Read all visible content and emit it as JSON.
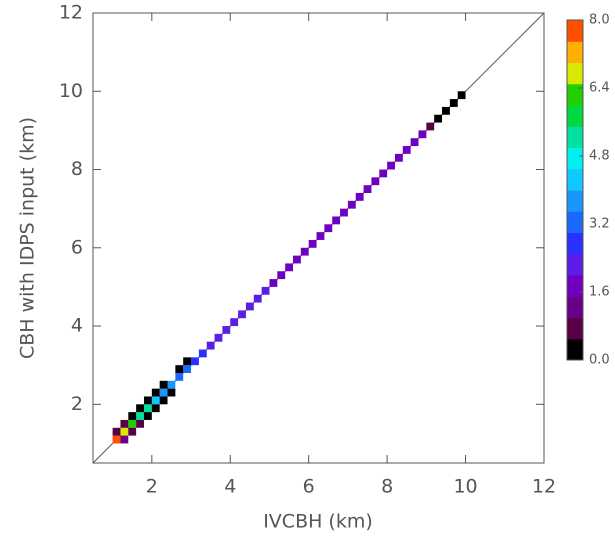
{
  "chart_data": {
    "type": "heatmap",
    "xlabel": "IVCBH (km)",
    "ylabel": "CBH with IDPS input (km)",
    "xlim": [
      0.5,
      12
    ],
    "ylim": [
      0.5,
      12
    ],
    "xticks": [
      2,
      4,
      6,
      8,
      10,
      12
    ],
    "yticks": [
      2,
      4,
      6,
      8,
      10,
      12
    ],
    "cell_size": 0.2,
    "x": [
      1.1,
      1.3,
      1.5,
      1.7,
      1.9,
      2.1,
      2.3,
      2.5,
      2.7,
      2.9,
      3.1,
      3.3,
      3.5,
      3.7,
      3.9,
      4.1,
      4.3,
      4.5,
      4.7,
      4.9,
      5.1,
      5.3,
      5.5,
      5.7,
      5.9,
      6.1,
      6.3,
      6.5,
      6.7,
      6.9,
      7.1,
      7.3,
      7.5,
      7.7,
      7.9,
      8.1,
      8.3,
      8.5,
      8.7,
      8.9,
      9.1,
      9.3,
      9.5,
      9.7,
      9.9,
      1.1,
      1.3,
      1.3,
      1.5,
      1.5,
      1.7,
      1.7,
      1.9,
      1.9,
      2.1,
      2.1,
      2.3,
      2.3,
      2.5,
      2.7,
      2.9
    ],
    "y": [
      1.1,
      1.3,
      1.5,
      1.7,
      1.9,
      2.1,
      2.3,
      2.5,
      2.7,
      2.9,
      3.1,
      3.3,
      3.5,
      3.7,
      3.9,
      4.1,
      4.3,
      4.5,
      4.7,
      4.9,
      5.1,
      5.3,
      5.5,
      5.7,
      5.9,
      6.1,
      6.3,
      6.5,
      6.7,
      6.9,
      7.1,
      7.3,
      7.5,
      7.7,
      7.9,
      8.1,
      8.3,
      8.5,
      8.7,
      8.9,
      9.1,
      9.3,
      9.5,
      9.7,
      9.9,
      1.3,
      1.1,
      1.5,
      1.3,
      1.7,
      1.5,
      1.9,
      1.7,
      2.1,
      1.9,
      2.3,
      2.1,
      2.5,
      2.3,
      2.9,
      3.1
    ],
    "values": [
      7.6,
      6.8,
      6.4,
      5.4,
      5.0,
      4.3,
      3.8,
      3.6,
      3.4,
      3.0,
      2.8,
      2.6,
      2.4,
      2.3,
      2.2,
      2.2,
      2.1,
      2.1,
      2.0,
      2.0,
      1.9,
      1.8,
      1.8,
      1.8,
      1.7,
      1.7,
      1.7,
      1.7,
      1.7,
      1.7,
      1.7,
      1.6,
      1.6,
      1.6,
      1.6,
      1.6,
      1.6,
      1.6,
      1.6,
      1.5,
      0.8,
      0.4,
      0.3,
      0.2,
      0.2,
      0.8,
      1.0,
      0.9,
      0.9,
      0.3,
      0.8,
      0.3,
      0.4,
      0.2,
      0.3,
      0.2,
      0.2,
      0.2,
      0.2,
      0.2,
      0.2
    ],
    "clim": [
      0,
      8
    ],
    "colorscale": [
      "#000000",
      "#5a0048",
      "#6a008a",
      "#7000c0",
      "#5a1ee6",
      "#2a30ff",
      "#1a6aff",
      "#1a96ff",
      "#10c8ff",
      "#00f0f0",
      "#00e0a0",
      "#00d840",
      "#20d000",
      "#d8e800",
      "#ffb000",
      "#ff5000"
    ],
    "cticks": [
      {
        "value": 0,
        "label": "0.0"
      },
      1.6,
      3.2,
      4.8,
      6.4,
      {
        "value": 8,
        "label": "8.0"
      }
    ]
  }
}
